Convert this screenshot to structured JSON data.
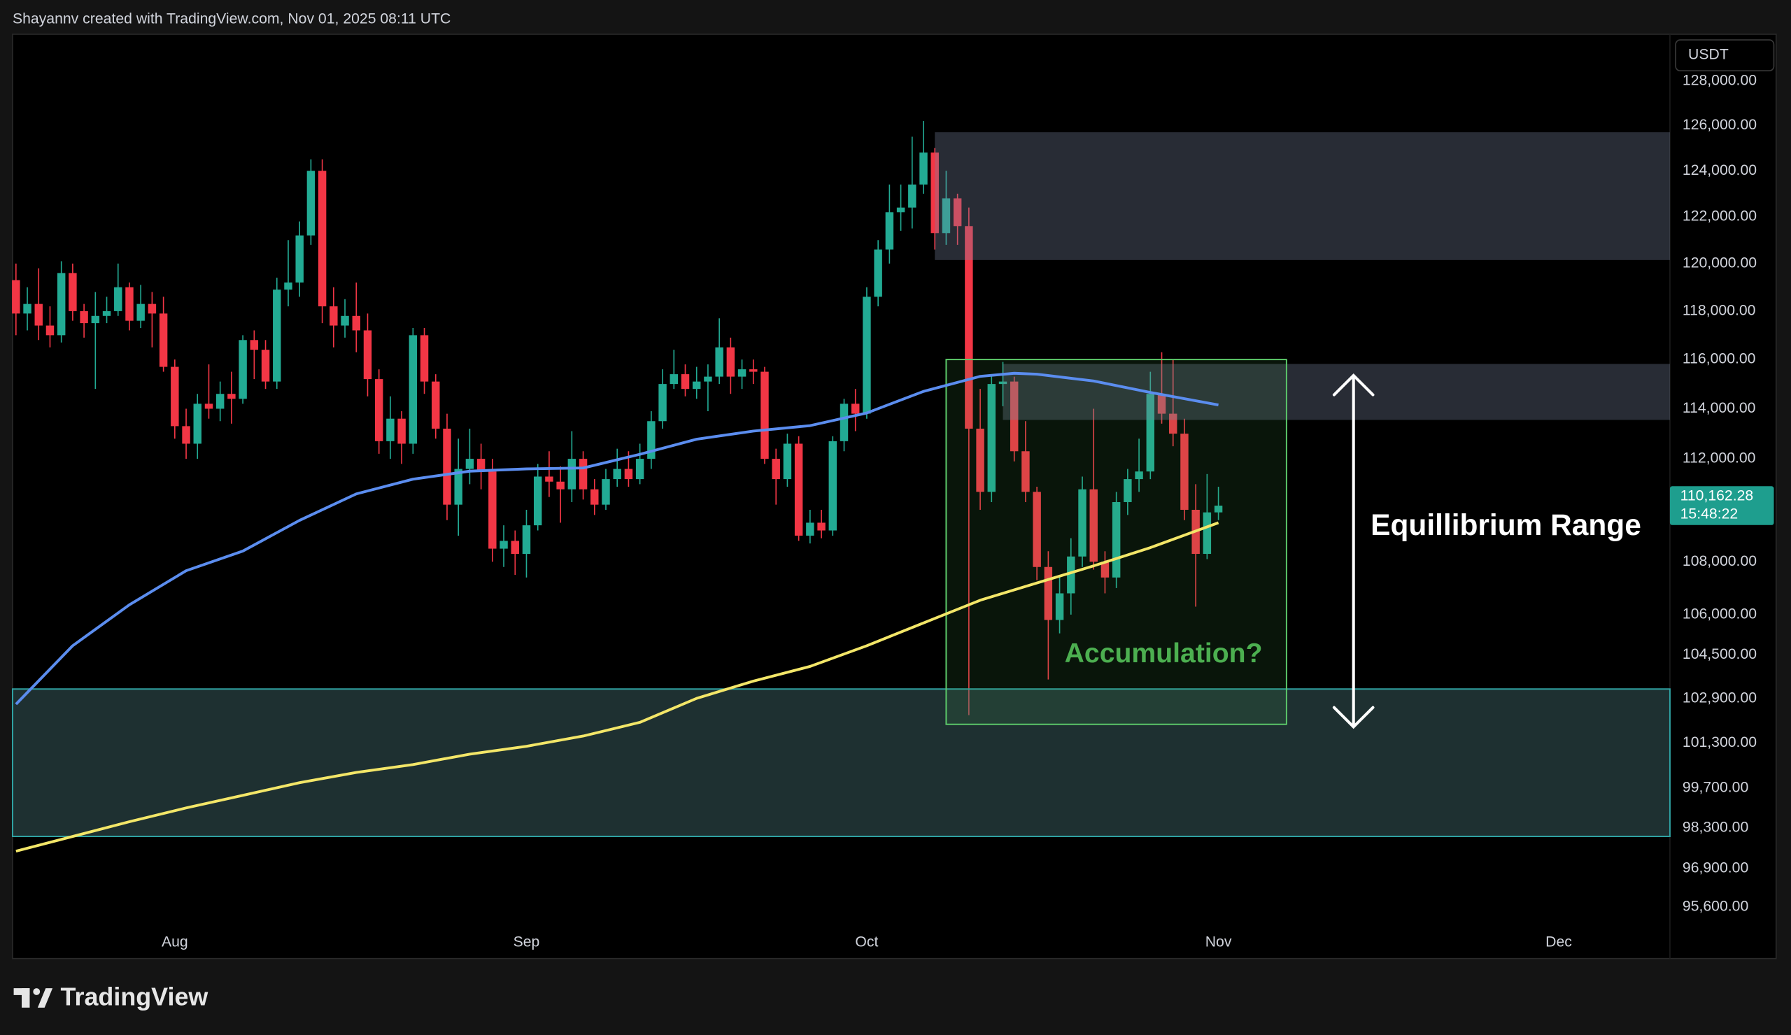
{
  "header": "Shayannv created with TradingView.com, Nov 01, 2025 08:11 UTC",
  "brand": "TradingView",
  "chart_data": {
    "type": "candlestick",
    "currency": "USDT",
    "log_scale": true,
    "up_color": "#22ab94",
    "down_color": "#f23645",
    "xlim": [
      -0.3,
      145.8
    ],
    "xticks": [
      {
        "value": 14,
        "label": "Aug"
      },
      {
        "value": 45,
        "label": "Sep"
      },
      {
        "value": 75,
        "label": "Oct"
      },
      {
        "value": 106,
        "label": "Nov"
      },
      {
        "value": 136,
        "label": "Dec"
      }
    ],
    "ylim": [
      93870,
      130130
    ],
    "yticks": [
      {
        "value": 128000,
        "label": "128,000.00"
      },
      {
        "value": 126000,
        "label": "126,000.00"
      },
      {
        "value": 124000,
        "label": "124,000.00"
      },
      {
        "value": 122000,
        "label": "122,000.00"
      },
      {
        "value": 120000,
        "label": "120,000.00"
      },
      {
        "value": 118000,
        "label": "118,000.00"
      },
      {
        "value": 116000,
        "label": "116,000.00"
      },
      {
        "value": 114000,
        "label": "114,000.00"
      },
      {
        "value": 112000,
        "label": "112,000.00"
      },
      {
        "value": 108000,
        "label": "108,000.00"
      },
      {
        "value": 106000,
        "label": "106,000.00"
      },
      {
        "value": 104500,
        "label": "104,500.00"
      },
      {
        "value": 102900,
        "label": "102,900.00"
      },
      {
        "value": 101300,
        "label": "101,300.00"
      },
      {
        "value": 99700,
        "label": "99,700.00"
      },
      {
        "value": 98300,
        "label": "98,300.00"
      },
      {
        "value": 96900,
        "label": "96,900.00"
      },
      {
        "value": 95600,
        "label": "95,600.00"
      }
    ],
    "open": [
      119300,
      117900,
      118300,
      117400,
      117000,
      119600,
      118000,
      117500,
      117800,
      118000,
      119000,
      117600,
      118300,
      117900,
      115700,
      113300,
      112600,
      114200,
      114000,
      114600,
      114400,
      116800,
      116400,
      115100,
      118900,
      119200,
      121200,
      124000,
      118200,
      117400,
      117800,
      117200,
      115200,
      112700,
      113600,
      112600,
      117000,
      115100,
      113200,
      110200,
      111600,
      112000,
      111500,
      108500,
      108800,
      108300,
      109400,
      111300,
      111100,
      110800,
      112000,
      110800,
      110200,
      111200,
      111600,
      111200,
      112000,
      113500,
      115000,
      115400,
      114800,
      115100,
      115300,
      116500,
      115300,
      115600,
      115500,
      112000,
      111200,
      112600,
      109000,
      109500,
      109200,
      112700,
      114200,
      113800,
      118600,
      120600,
      122200,
      122400,
      123400,
      124800,
      121300,
      122800,
      121600,
      113200,
      110700,
      115000,
      115100,
      112300,
      110700,
      107800,
      105800,
      106800,
      108200,
      110800,
      108000,
      107400,
      110300,
      111200,
      111500,
      114600,
      113800,
      113000,
      110000,
      108300,
      109900
    ],
    "high": [
      120000,
      119000,
      119800,
      118200,
      120100,
      120000,
      118300,
      118800,
      118600,
      120000,
      119200,
      119100,
      118800,
      118600,
      116000,
      114000,
      114600,
      115800,
      115100,
      115500,
      117000,
      117200,
      116800,
      119400,
      121000,
      121800,
      124500,
      124500,
      119000,
      118500,
      119200,
      117900,
      115600,
      114500,
      113900,
      117300,
      117300,
      115400,
      113800,
      112800,
      113200,
      112600,
      112000,
      109400,
      109200,
      110000,
      111800,
      112300,
      111700,
      113100,
      112300,
      111200,
      111600,
      112400,
      112300,
      112600,
      113900,
      115600,
      116400,
      115800,
      115700,
      115800,
      117700,
      116900,
      116000,
      116000,
      115700,
      112400,
      113000,
      112900,
      110000,
      110000,
      112900,
      114400,
      114800,
      119000,
      121000,
      123400,
      123400,
      125500,
      126200,
      125000,
      124000,
      123000,
      122400,
      114800,
      115400,
      115900,
      115300,
      113500,
      110900,
      108400,
      107500,
      108900,
      111300,
      114000,
      108400,
      110700,
      111600,
      112800,
      115500,
      116300,
      116000,
      113600,
      111000,
      111400,
      110900
    ],
    "low": [
      117000,
      117200,
      116800,
      116500,
      116700,
      117600,
      116900,
      114800,
      117500,
      117800,
      117200,
      117300,
      116500,
      115500,
      112800,
      112000,
      112000,
      113600,
      113500,
      113400,
      114200,
      115200,
      114800,
      114800,
      118200,
      118600,
      120800,
      117500,
      116500,
      116900,
      116300,
      114500,
      112200,
      112000,
      111800,
      112200,
      114600,
      112800,
      109600,
      109000,
      111000,
      110800,
      108000,
      107800,
      107500,
      107400,
      109200,
      110500,
      109500,
      110300,
      110400,
      109800,
      110000,
      110900,
      110900,
      111000,
      111600,
      113200,
      114800,
      114500,
      114400,
      113900,
      115000,
      114600,
      114800,
      115000,
      111800,
      110200,
      110900,
      108800,
      108700,
      108900,
      109000,
      112300,
      113100,
      113600,
      118200,
      120000,
      121400,
      121500,
      123000,
      120600,
      120800,
      120800,
      102300,
      110000,
      110300,
      114100,
      111900,
      110300,
      107300,
      103600,
      105300,
      106000,
      107800,
      107700,
      106800,
      107000,
      109800,
      110700,
      111200,
      113400,
      112500,
      109600,
      106300,
      108100,
      109600
    ],
    "close": [
      117900,
      118300,
      117400,
      117000,
      119600,
      118000,
      117500,
      117800,
      118000,
      119000,
      117600,
      118300,
      117900,
      115700,
      113300,
      112600,
      114200,
      114000,
      114600,
      114400,
      116800,
      116400,
      115100,
      118900,
      119200,
      121200,
      124000,
      118200,
      117400,
      117800,
      117200,
      115200,
      112700,
      113600,
      112600,
      117000,
      115100,
      113200,
      110200,
      111600,
      112000,
      111500,
      108500,
      108800,
      108300,
      109400,
      111300,
      111100,
      110800,
      112000,
      110800,
      110200,
      111200,
      111600,
      111200,
      112000,
      113500,
      115000,
      115400,
      114800,
      115100,
      115300,
      116500,
      115300,
      115600,
      115500,
      112000,
      111200,
      112600,
      109000,
      109500,
      109200,
      112700,
      114200,
      113800,
      118600,
      120600,
      122200,
      122400,
      123400,
      124800,
      121300,
      122800,
      121600,
      113200,
      110700,
      115000,
      115100,
      112300,
      110700,
      107800,
      105800,
      106800,
      108200,
      110800,
      108000,
      107400,
      110300,
      111200,
      111500,
      114600,
      113800,
      113000,
      110000,
      108300,
      109900,
      110162.28
    ],
    "lines": [
      {
        "color": "#5b8def",
        "x": [
          0,
          5,
          10,
          15,
          20,
          25,
          30,
          35,
          40,
          45,
          50,
          55,
          60,
          65,
          70,
          75,
          80,
          85,
          88,
          90,
          95,
          100,
          106
        ],
        "values": [
          102700,
          104840,
          106370,
          107660,
          108410,
          109590,
          110620,
          111200,
          111510,
          111600,
          111640,
          112180,
          112780,
          113100,
          113320,
          113830,
          114700,
          115310,
          115440,
          115400,
          115120,
          114660,
          114150
        ]
      },
      {
        "color": "#f3e668",
        "x": [
          0,
          10,
          15,
          20,
          25,
          30,
          35,
          40,
          45,
          50,
          55,
          60,
          65,
          70,
          75,
          80,
          85,
          90,
          95,
          100,
          106
        ],
        "values": [
          97500,
          98520,
          99000,
          99440,
          99890,
          100250,
          100530,
          100900,
          101180,
          101550,
          102040,
          102910,
          103540,
          104080,
          104840,
          105690,
          106540,
          107190,
          107840,
          108540,
          109500
        ]
      }
    ],
    "zones": [
      {
        "color": "rgba(120,135,160,0.33)",
        "x": [
          81,
          145.8
        ],
        "y": [
          120150,
          125700
        ]
      },
      {
        "color": "rgba(120,135,160,0.33)",
        "x": [
          87,
          145.8
        ],
        "y": [
          113550,
          115820
        ]
      },
      {
        "color": "rgba(80,125,130,0.38)",
        "border": "#2fa3a3",
        "x": [
          -0.3,
          145.8
        ],
        "y": [
          98010,
          103250
        ]
      },
      {
        "color": "rgba(76,175,80,0.12)",
        "border": "#5cc96a",
        "x": [
          82,
          112
        ],
        "y": [
          101970,
          116000
        ]
      }
    ],
    "last_price": {
      "value": 110162.28,
      "label": "110,162.28",
      "countdown": "15:48:22"
    },
    "annotations": [
      {
        "text": "Equillibrium Range",
        "color": "#ffffff"
      },
      {
        "text": "Accumulation?",
        "color": "#4caf50"
      }
    ]
  }
}
